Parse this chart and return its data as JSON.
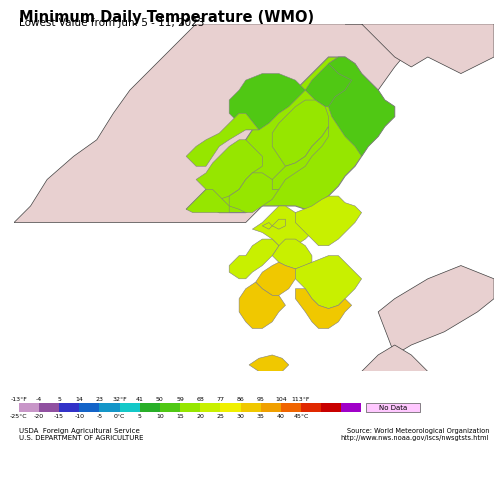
{
  "title": "Minimum Daily Temperature (WMO)",
  "subtitle": "Lowest Value from Jun. 5 - 11, 2023",
  "colorbar_colors": [
    "#c896c8",
    "#9050a0",
    "#3232c8",
    "#1464c8",
    "#1496c8",
    "#14c8c8",
    "#28af28",
    "#50c814",
    "#96e600",
    "#c8f000",
    "#f0f000",
    "#f0c800",
    "#f0a000",
    "#f06400",
    "#e02800",
    "#c80000",
    "#a000c8",
    "#ffc8ff"
  ],
  "labels_f": [
    "-13°F",
    "-4",
    "5",
    "14",
    "23",
    "32°F",
    "41",
    "50",
    "59",
    "68",
    "77",
    "86",
    "95",
    "104",
    "113°F"
  ],
  "labels_c": [
    "-25°C",
    "-20",
    "-15",
    "-10",
    "-5",
    "0°C",
    "5",
    "10",
    "15",
    "20",
    "25",
    "30",
    "35",
    "40",
    "45°C"
  ],
  "no_data_color": "#e8e8e8",
  "ocean_color": "#aed8f0",
  "land_bg_color": "#e8d0d0",
  "border_color": "#808080",
  "coast_color": "#404040",
  "title_fontsize": 10.5,
  "subtitle_fontsize": 7.5,
  "source_text": "Source: World Meteorological Organization\nhttp://www.nws.noaa.gov/iscs/nwsgtsts.html",
  "usda_text": "USDA  Foreign Agricultural Service\nU.S. DEPARTMENT OF AGRICULTURE",
  "map_xlim": [
    119.0,
    133.5
  ],
  "map_ylim": [
    33.0,
    43.5
  ]
}
